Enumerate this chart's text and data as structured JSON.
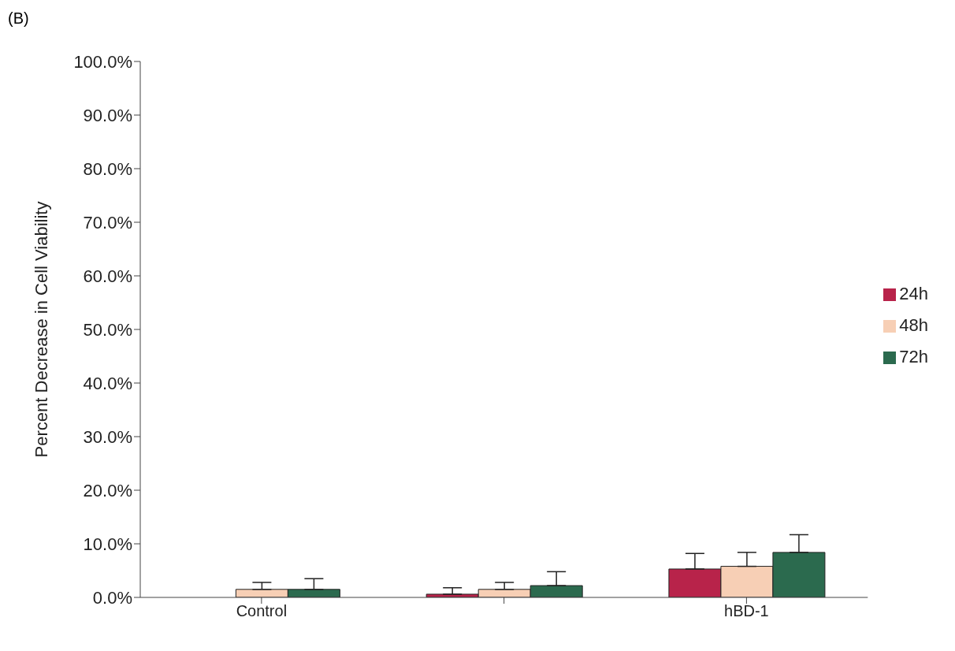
{
  "chart_data": {
    "type": "bar",
    "title": "(B)",
    "ylabel": "Percent Decrease in Cell Viability",
    "categories": [
      "Control",
      null,
      "hBD-1"
    ],
    "series": [
      {
        "name": "24h",
        "color": "#b8234a",
        "values": [
          0,
          0.6,
          5.3
        ],
        "errors": [
          null,
          [
            0.6,
            1.8
          ],
          [
            5.3,
            8.2
          ]
        ]
      },
      {
        "name": "48h",
        "color": "#f7cfb5",
        "values": [
          1.5,
          1.5,
          5.8
        ],
        "errors": [
          [
            1.5,
            2.8
          ],
          [
            1.5,
            2.8
          ],
          [
            5.8,
            8.4
          ]
        ]
      },
      {
        "name": "72h",
        "color": "#2b6a4e",
        "values": [
          1.5,
          2.2,
          8.4
        ],
        "errors": [
          [
            1.5,
            3.5
          ],
          [
            2.2,
            4.8
          ],
          [
            8.4,
            11.7
          ]
        ]
      }
    ],
    "ylim": [
      0,
      100
    ],
    "yticks": [
      {
        "value": 0,
        "label": "0.0%"
      },
      {
        "value": 10,
        "label": "10.0%"
      },
      {
        "value": 20,
        "label": "20.0%"
      },
      {
        "value": 30,
        "label": "30.0%"
      },
      {
        "value": 40,
        "label": "40.0%"
      },
      {
        "value": 50,
        "label": "50.0%"
      },
      {
        "value": 60,
        "label": "60.0%"
      },
      {
        "value": 70,
        "label": "70.0%"
      },
      {
        "value": 80,
        "label": "80.0%"
      },
      {
        "value": 90,
        "label": "90.0%"
      },
      {
        "value": 100,
        "label": "100.0%"
      }
    ],
    "grid": false,
    "legend": "right"
  }
}
